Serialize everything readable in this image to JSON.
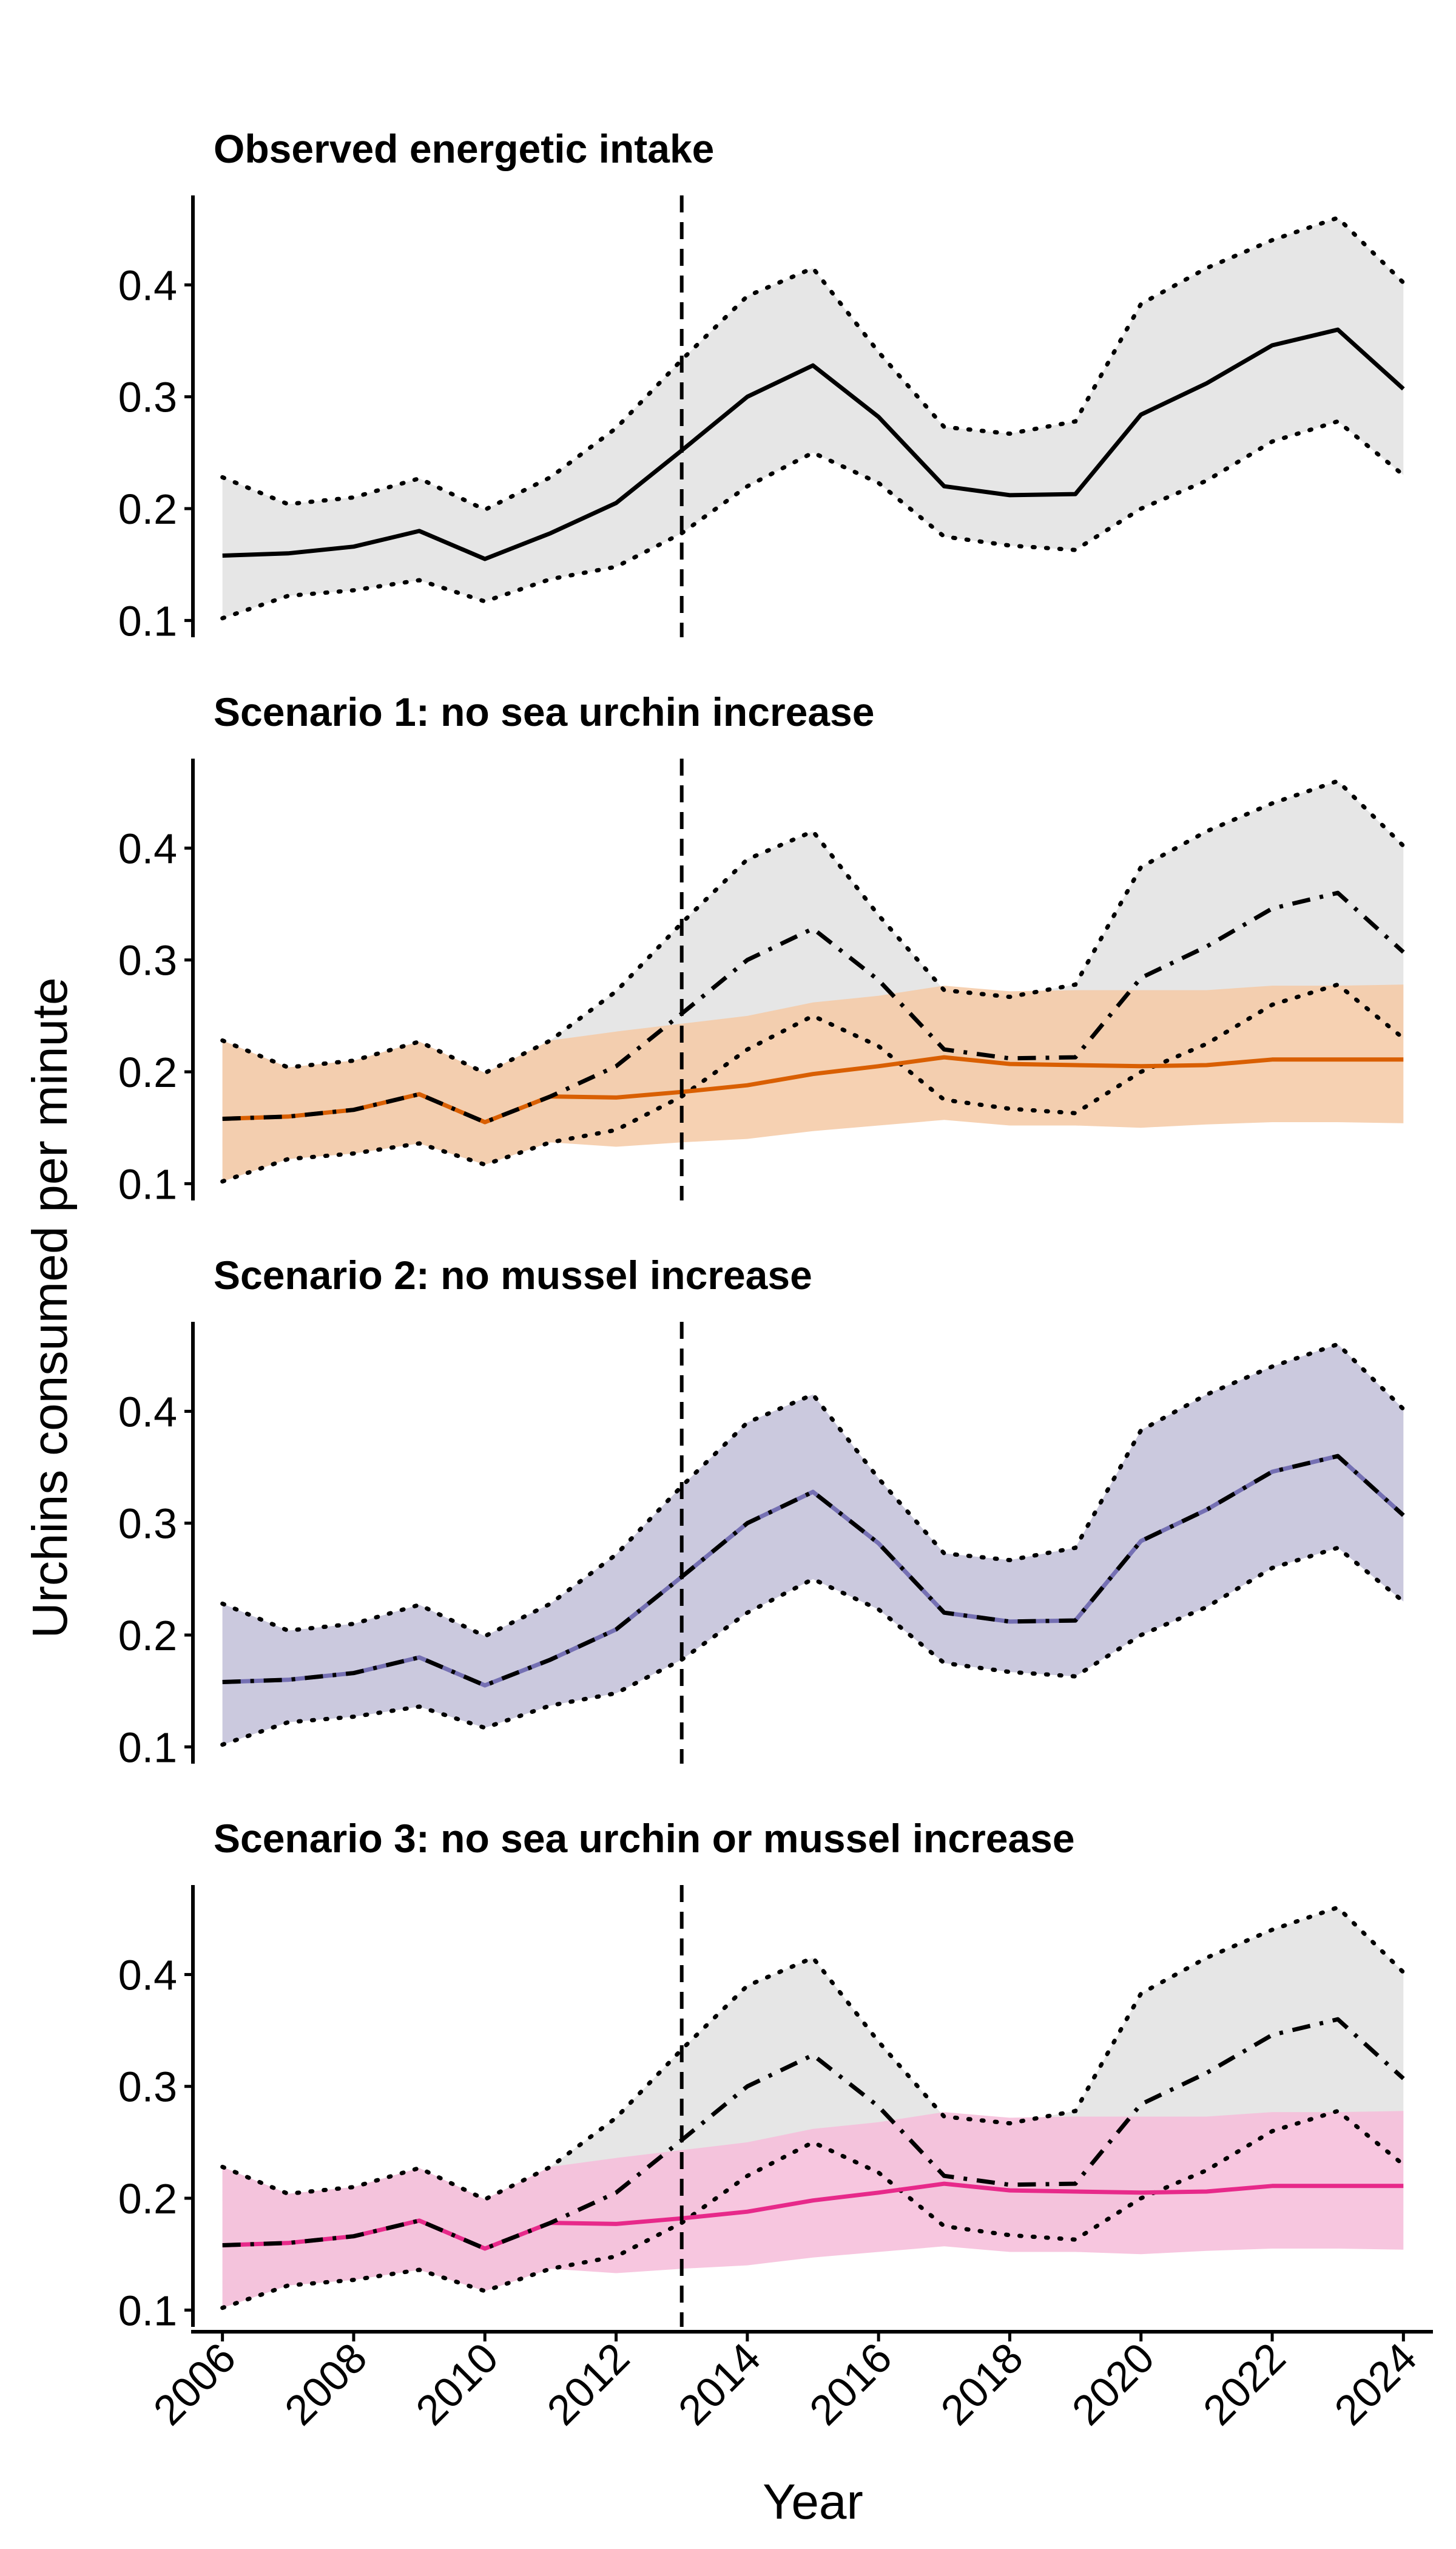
{
  "chart_data": {
    "type": "line",
    "xlabel": "Year",
    "ylabel": "Urchins consumed per minute",
    "x": [
      2006,
      2007,
      2008,
      2009,
      2010,
      2011,
      2012,
      2013,
      2014,
      2015,
      2016,
      2017,
      2018,
      2019,
      2020,
      2021,
      2022,
      2023,
      2024
    ],
    "x_ticks": [
      "2006",
      "2008",
      "2010",
      "2012",
      "2014",
      "2016",
      "2018",
      "2020",
      "2022",
      "2024"
    ],
    "y_ticks": [
      "0.1",
      "0.2",
      "0.3",
      "0.4"
    ],
    "ylim": [
      0.085,
      0.48
    ],
    "xlim": [
      2005.55,
      2024.45
    ],
    "reference_line_x": 2013,
    "observed": {
      "mean": [
        0.158,
        0.16,
        0.166,
        0.18,
        0.155,
        0.178,
        0.205,
        0.252,
        0.3,
        0.328,
        0.282,
        0.22,
        0.212,
        0.213,
        0.284,
        0.312,
        0.346,
        0.36,
        0.307
      ],
      "lower": [
        0.102,
        0.122,
        0.127,
        0.136,
        0.117,
        0.137,
        0.148,
        0.178,
        0.22,
        0.25,
        0.223,
        0.175,
        0.167,
        0.163,
        0.2,
        0.225,
        0.26,
        0.278,
        0.23
      ],
      "upper": [
        0.228,
        0.204,
        0.21,
        0.227,
        0.199,
        0.228,
        0.272,
        0.333,
        0.39,
        0.415,
        0.34,
        0.273,
        0.267,
        0.278,
        0.383,
        0.415,
        0.44,
        0.46,
        0.402
      ]
    },
    "panels": [
      {
        "title": "Observed energetic intake",
        "color": "#000000",
        "fill": "#e6e6e6",
        "show_observed_overlay": false,
        "series": null
      },
      {
        "title": "Scenario 1: no sea urchin increase",
        "color": "#d95f02",
        "fill": "#f5c9a4",
        "show_observed_overlay": true,
        "series": {
          "mean": [
            0.158,
            0.16,
            0.166,
            0.18,
            0.155,
            0.178,
            0.177,
            0.182,
            0.188,
            0.198,
            0.205,
            0.213,
            0.207,
            0.206,
            0.205,
            0.206,
            0.211,
            0.211,
            0.211
          ],
          "lower": [
            0.102,
            0.122,
            0.127,
            0.136,
            0.117,
            0.137,
            0.133,
            0.137,
            0.14,
            0.147,
            0.152,
            0.157,
            0.152,
            0.152,
            0.15,
            0.153,
            0.155,
            0.155,
            0.154
          ],
          "upper": [
            0.228,
            0.204,
            0.21,
            0.227,
            0.199,
            0.228,
            0.236,
            0.243,
            0.25,
            0.262,
            0.268,
            0.277,
            0.272,
            0.273,
            0.273,
            0.273,
            0.277,
            0.277,
            0.278
          ]
        }
      },
      {
        "title": "Scenario 2: no mussel increase",
        "color": "#7570b3",
        "fill": "#c6c3dc",
        "show_observed_overlay": true,
        "series": {
          "mean": [
            0.158,
            0.16,
            0.166,
            0.18,
            0.155,
            0.178,
            0.205,
            0.252,
            0.3,
            0.328,
            0.282,
            0.22,
            0.212,
            0.213,
            0.284,
            0.312,
            0.346,
            0.36,
            0.307
          ],
          "lower": [
            0.102,
            0.122,
            0.127,
            0.136,
            0.117,
            0.137,
            0.148,
            0.178,
            0.22,
            0.25,
            0.223,
            0.175,
            0.167,
            0.163,
            0.2,
            0.225,
            0.26,
            0.278,
            0.23
          ],
          "upper": [
            0.228,
            0.204,
            0.21,
            0.227,
            0.199,
            0.228,
            0.272,
            0.333,
            0.39,
            0.415,
            0.34,
            0.273,
            0.267,
            0.278,
            0.383,
            0.415,
            0.44,
            0.46,
            0.402
          ]
        }
      },
      {
        "title": "Scenario 3: no sea urchin or mussel increase",
        "color": "#e7298a",
        "fill": "#f6bcd9",
        "show_observed_overlay": true,
        "series": {
          "mean": [
            0.158,
            0.16,
            0.166,
            0.18,
            0.155,
            0.178,
            0.177,
            0.182,
            0.188,
            0.198,
            0.205,
            0.213,
            0.207,
            0.206,
            0.205,
            0.206,
            0.211,
            0.211,
            0.211
          ],
          "lower": [
            0.102,
            0.122,
            0.127,
            0.136,
            0.117,
            0.137,
            0.133,
            0.137,
            0.14,
            0.147,
            0.152,
            0.157,
            0.152,
            0.152,
            0.15,
            0.153,
            0.155,
            0.155,
            0.154
          ],
          "upper": [
            0.228,
            0.204,
            0.21,
            0.227,
            0.199,
            0.228,
            0.236,
            0.243,
            0.25,
            0.262,
            0.268,
            0.277,
            0.272,
            0.273,
            0.273,
            0.273,
            0.277,
            0.277,
            0.278
          ]
        }
      }
    ]
  }
}
